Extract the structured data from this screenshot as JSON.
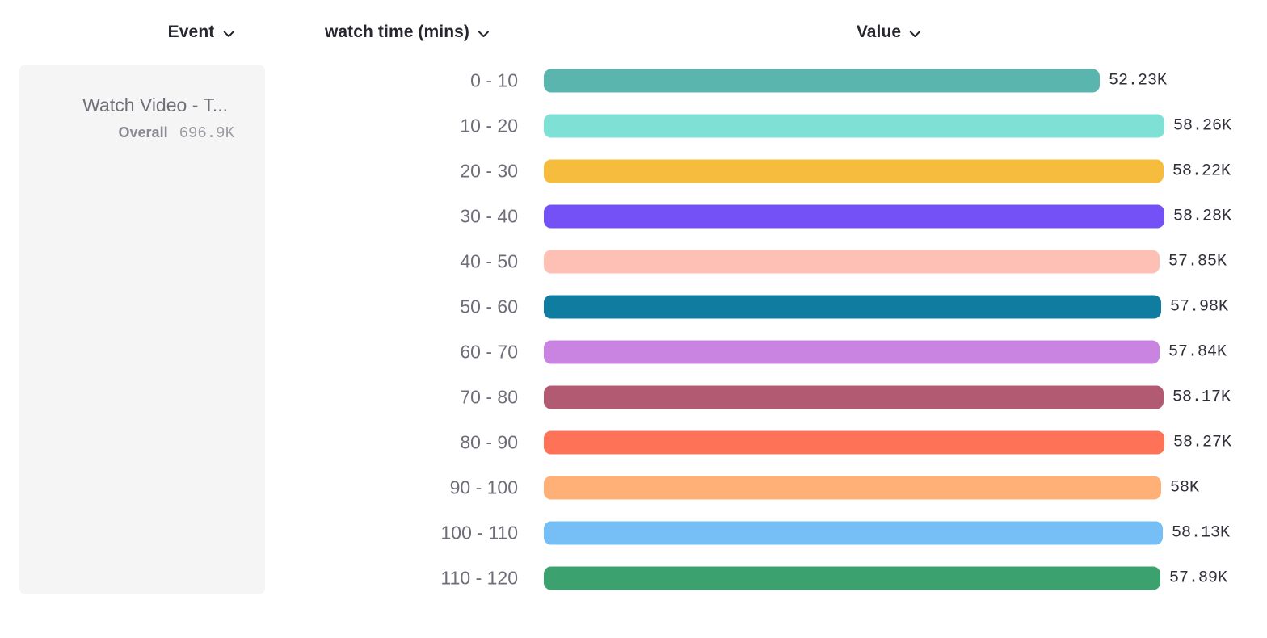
{
  "header": {
    "columns": [
      {
        "id": "event",
        "label": "Event"
      },
      {
        "id": "bucket",
        "label": "watch time (mins)"
      },
      {
        "id": "value",
        "label": "Value"
      }
    ]
  },
  "event_card": {
    "title": "Watch Video - T...",
    "overall_label": "Overall",
    "overall_value": "696.9K"
  },
  "chart_data": {
    "type": "bar",
    "orientation": "horizontal",
    "title": "",
    "xlabel": "Value",
    "ylabel": "watch time (mins)",
    "xlim": [
      0,
      58280
    ],
    "grid": false,
    "categories": [
      "0 - 10",
      "10 - 20",
      "20 - 30",
      "30 - 40",
      "40 - 50",
      "50 - 60",
      "60 - 70",
      "70 - 80",
      "80 - 90",
      "90 - 100",
      "100 - 110",
      "110 - 120"
    ],
    "values": [
      52230,
      58260,
      58220,
      58280,
      57850,
      57980,
      57840,
      58170,
      58270,
      58000,
      58130,
      57890
    ],
    "value_labels": [
      "52.23K",
      "58.26K",
      "58.22K",
      "58.28K",
      "57.85K",
      "57.98K",
      "57.84K",
      "58.17K",
      "58.27K",
      "58K",
      "58.13K",
      "57.89K"
    ],
    "colors": [
      "#59b5ad",
      "#7fe0d5",
      "#f6bc3d",
      "#7451f7",
      "#fec0b5",
      "#107c9f",
      "#c983e0",
      "#b25a72",
      "#fe7257",
      "#feb077",
      "#75bff6",
      "#3ba26f"
    ]
  },
  "icons": {
    "dropdown_chevron": "chevron-down"
  }
}
